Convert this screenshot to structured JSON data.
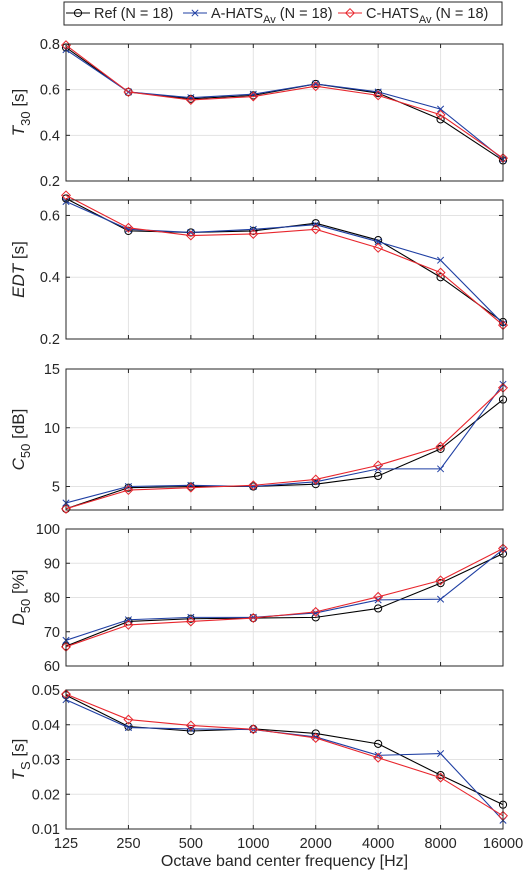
{
  "legend": {
    "entries": [
      {
        "main": "Ref (N = 18)",
        "sub": "",
        "tail": "",
        "color": "#000000",
        "marker": "circle"
      },
      {
        "main": "A-HATS",
        "sub": "Av",
        "tail": " (N = 18)",
        "color": "#1f3fa3",
        "marker": "x"
      },
      {
        "main": "C-HATS",
        "sub": "Av",
        "tail": " (N = 18)",
        "color": "#e8262d",
        "marker": "diamond"
      }
    ]
  },
  "xlabel": "Octave band center frequency [Hz]",
  "chart_data": [
    {
      "type": "line",
      "ylabel": {
        "main": "T",
        "sub": "30",
        "tail": " [s]",
        "italic": true
      },
      "categories": [
        "125",
        "250",
        "500",
        "1000",
        "2000",
        "4000",
        "8000",
        "16000"
      ],
      "ylim": [
        0.2,
        0.8
      ],
      "yticks": [
        "0.2",
        "0.4",
        "0.6",
        "0.8"
      ],
      "grid": true,
      "series": [
        {
          "name": "Ref (N = 18)",
          "color": "#000000",
          "marker": "circle",
          "values": [
            0.785,
            0.59,
            0.56,
            0.575,
            0.625,
            0.585,
            0.47,
            0.29
          ]
        },
        {
          "name": "A-HATS Av (N = 18)",
          "color": "#1f3fa3",
          "marker": "x",
          "values": [
            0.775,
            0.59,
            0.565,
            0.58,
            0.625,
            0.59,
            0.515,
            0.295
          ]
        },
        {
          "name": "C-HATS Av (N = 18)",
          "color": "#e8262d",
          "marker": "diamond",
          "values": [
            0.795,
            0.59,
            0.555,
            0.57,
            0.615,
            0.575,
            0.49,
            0.3
          ]
        }
      ]
    },
    {
      "type": "line",
      "ylabel": {
        "main": "EDT",
        "sub": "",
        "tail": " [s]",
        "italic": true
      },
      "categories": [
        "125",
        "250",
        "500",
        "1000",
        "2000",
        "4000",
        "8000",
        "16000"
      ],
      "ylim": [
        0.2,
        0.65
      ],
      "yticks": [
        "0.2",
        "0.4",
        "0.6"
      ],
      "grid": true,
      "series": [
        {
          "name": "Ref (N = 18)",
          "color": "#000000",
          "marker": "circle",
          "values": [
            0.655,
            0.55,
            0.545,
            0.55,
            0.575,
            0.52,
            0.4,
            0.255
          ]
        },
        {
          "name": "A-HATS Av (N = 18)",
          "color": "#1f3fa3",
          "marker": "x",
          "values": [
            0.645,
            0.555,
            0.545,
            0.555,
            0.57,
            0.515,
            0.455,
            0.25
          ]
        },
        {
          "name": "C-HATS Av (N = 18)",
          "color": "#e8262d",
          "marker": "diamond",
          "values": [
            0.665,
            0.56,
            0.535,
            0.54,
            0.555,
            0.495,
            0.415,
            0.245
          ]
        }
      ]
    },
    {
      "type": "line",
      "ylabel": {
        "main": "C",
        "sub": "50",
        "tail": " [dB]",
        "italic": true
      },
      "categories": [
        "125",
        "250",
        "500",
        "1000",
        "2000",
        "4000",
        "8000",
        "16000"
      ],
      "ylim": [
        3,
        15
      ],
      "yticks": [
        "5",
        "10",
        "15"
      ],
      "grid": true,
      "series": [
        {
          "name": "Ref (N = 18)",
          "color": "#000000",
          "marker": "circle",
          "values": [
            3.1,
            4.9,
            5.0,
            5.0,
            5.2,
            5.9,
            8.2,
            12.4
          ]
        },
        {
          "name": "A-HATS Av (N = 18)",
          "color": "#1f3fa3",
          "marker": "x",
          "values": [
            3.6,
            5.0,
            5.1,
            5.0,
            5.4,
            6.5,
            6.5,
            13.7
          ]
        },
        {
          "name": "C-HATS Av (N = 18)",
          "color": "#e8262d",
          "marker": "diamond",
          "values": [
            3.1,
            4.7,
            4.9,
            5.1,
            5.6,
            6.8,
            8.4,
            13.4
          ]
        }
      ]
    },
    {
      "type": "line",
      "ylabel": {
        "main": "D",
        "sub": "50",
        "tail": " [%]",
        "italic": true
      },
      "categories": [
        "125",
        "250",
        "500",
        "1000",
        "2000",
        "4000",
        "8000",
        "16000"
      ],
      "ylim": [
        60,
        100
      ],
      "yticks": [
        "60",
        "70",
        "80",
        "90",
        "100"
      ],
      "grid": true,
      "series": [
        {
          "name": "Ref (N = 18)",
          "color": "#000000",
          "marker": "circle",
          "values": [
            65.8,
            73.0,
            73.8,
            74.0,
            74.2,
            76.8,
            84.2,
            92.8
          ]
        },
        {
          "name": "A-HATS Av (N = 18)",
          "color": "#1f3fa3",
          "marker": "x",
          "values": [
            67.5,
            73.5,
            74.2,
            74.2,
            75.5,
            79.3,
            79.5,
            94.0
          ]
        },
        {
          "name": "C-HATS Av (N = 18)",
          "color": "#e8262d",
          "marker": "diamond",
          "values": [
            65.6,
            72.0,
            73.0,
            74.0,
            75.8,
            80.2,
            85.0,
            94.3
          ]
        }
      ]
    },
    {
      "type": "line",
      "ylabel": {
        "main": "T",
        "sub": "S",
        "tail": " [s]",
        "italic": true
      },
      "categories": [
        "125",
        "250",
        "500",
        "1000",
        "2000",
        "4000",
        "8000",
        "16000"
      ],
      "ylim": [
        0.01,
        0.05
      ],
      "yticks": [
        "0.01",
        "0.02",
        "0.03",
        "0.04",
        "0.05"
      ],
      "grid": true,
      "series": [
        {
          "name": "Ref (N = 18)",
          "color": "#000000",
          "marker": "circle",
          "values": [
            0.0485,
            0.0395,
            0.0382,
            0.0388,
            0.0375,
            0.0345,
            0.0255,
            0.017
          ]
        },
        {
          "name": "A-HATS Av (N = 18)",
          "color": "#1f3fa3",
          "marker": "x",
          "values": [
            0.0472,
            0.0392,
            0.0388,
            0.0386,
            0.0365,
            0.0312,
            0.0317,
            0.0125
          ]
        },
        {
          "name": "C-HATS Av (N = 18)",
          "color": "#e8262d",
          "marker": "diamond",
          "values": [
            0.0488,
            0.0415,
            0.0398,
            0.0387,
            0.0362,
            0.0305,
            0.0248,
            0.0138
          ]
        }
      ]
    }
  ]
}
